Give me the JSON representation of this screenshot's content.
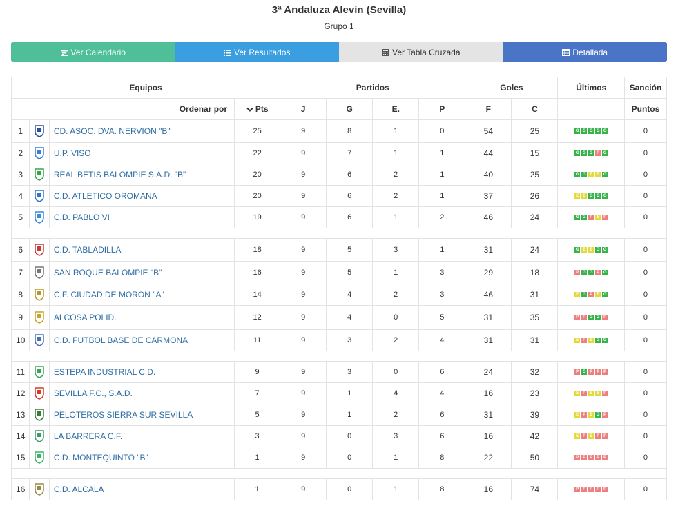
{
  "header": {
    "title": "3ª Andaluza Alevín (Sevilla)",
    "subtitle": "Grupo 1"
  },
  "buttons": [
    {
      "label": "Ver Calendario",
      "icon": "calendar-icon",
      "color": "#4fbf99"
    },
    {
      "label": "Ver Resultados",
      "icon": "list-icon",
      "color": "#3a9ee0"
    },
    {
      "label": "Ver Tabla Cruzada",
      "icon": "calculator-icon",
      "color": "#e4e4e4"
    },
    {
      "label": "Detallada",
      "icon": "table-icon",
      "color": "#4a74c6"
    }
  ],
  "table": {
    "groups": {
      "equipos": "Equipos",
      "partidos": "Partidos",
      "goles": "Goles",
      "ultimos": "Últimos",
      "sancion": "Sanción"
    },
    "sub": {
      "order": "Ordenar por",
      "pts": "Pts",
      "j": "J",
      "g": "G",
      "e": "E.",
      "p": "P",
      "f": "F",
      "c": "C",
      "puntos": "Puntos"
    },
    "rows": [
      {
        "pos": "1",
        "team": "CD. ASOC. DVA. NERVION \"B\"",
        "pts": "25",
        "j": "9",
        "g": "8",
        "e": "1",
        "p": "0",
        "f": "54",
        "c": "25",
        "form": [
          "G",
          "G",
          "G",
          "G",
          "G"
        ],
        "sancion": "0"
      },
      {
        "pos": "2",
        "team": "U.P. VISO",
        "pts": "22",
        "j": "9",
        "g": "7",
        "e": "1",
        "p": "1",
        "f": "44",
        "c": "15",
        "form": [
          "G",
          "G",
          "G",
          "P",
          "G"
        ],
        "sancion": "0"
      },
      {
        "pos": "3",
        "team": "REAL BETIS BALOMPIE S.A.D. \"B\"",
        "pts": "20",
        "j": "9",
        "g": "6",
        "e": "2",
        "p": "1",
        "f": "40",
        "c": "25",
        "form": [
          "G",
          "G",
          "E",
          "E",
          "G"
        ],
        "sancion": "0"
      },
      {
        "pos": "4",
        "team": "C.D. ATLETICO OROMANA",
        "pts": "20",
        "j": "9",
        "g": "6",
        "e": "2",
        "p": "1",
        "f": "37",
        "c": "26",
        "form": [
          "E",
          "E",
          "G",
          "G",
          "G"
        ],
        "sancion": "0"
      },
      {
        "pos": "5",
        "team": "C.D. PABLO VI",
        "pts": "19",
        "j": "9",
        "g": "6",
        "e": "1",
        "p": "2",
        "f": "46",
        "c": "24",
        "form": [
          "G",
          "G",
          "P",
          "E",
          "P"
        ],
        "sancion": "0"
      },
      {
        "pos": "6",
        "team": "C.D. TABLADILLA",
        "pts": "18",
        "j": "9",
        "g": "5",
        "e": "3",
        "p": "1",
        "f": "31",
        "c": "24",
        "form": [
          "G",
          "E",
          "E",
          "G",
          "G"
        ],
        "sancion": "0"
      },
      {
        "pos": "7",
        "team": "SAN ROQUE BALOMPIE \"B\"",
        "pts": "16",
        "j": "9",
        "g": "5",
        "e": "1",
        "p": "3",
        "f": "29",
        "c": "18",
        "form": [
          "P",
          "G",
          "G",
          "P",
          "G"
        ],
        "sancion": "0"
      },
      {
        "pos": "8",
        "team": "C.F. CIUDAD DE MORON \"A\"",
        "pts": "14",
        "j": "9",
        "g": "4",
        "e": "2",
        "p": "3",
        "f": "46",
        "c": "31",
        "form": [
          "E",
          "G",
          "P",
          "E",
          "G"
        ],
        "sancion": "0"
      },
      {
        "pos": "9",
        "team": "ALCOSA POLID.",
        "pts": "12",
        "j": "9",
        "g": "4",
        "e": "0",
        "p": "5",
        "f": "31",
        "c": "35",
        "form": [
          "P",
          "P",
          "G",
          "G",
          "P"
        ],
        "sancion": "0"
      },
      {
        "pos": "10",
        "team": "C.D. FUTBOL BASE DE CARMONA",
        "pts": "11",
        "j": "9",
        "g": "3",
        "e": "2",
        "p": "4",
        "f": "31",
        "c": "31",
        "form": [
          "E",
          "P",
          "E",
          "G",
          "G"
        ],
        "sancion": "0"
      },
      {
        "pos": "11",
        "team": "ESTEPA INDUSTRIAL C.D.",
        "pts": "9",
        "j": "9",
        "g": "3",
        "e": "0",
        "p": "6",
        "f": "24",
        "c": "32",
        "form": [
          "P",
          "G",
          "P",
          "P",
          "P"
        ],
        "sancion": "0"
      },
      {
        "pos": "12",
        "team": "SEVILLA F.C., S.A.D.",
        "pts": "7",
        "j": "9",
        "g": "1",
        "e": "4",
        "p": "4",
        "f": "16",
        "c": "23",
        "form": [
          "E",
          "P",
          "E",
          "E",
          "P"
        ],
        "sancion": "0"
      },
      {
        "pos": "13",
        "team": "PELOTEROS SIERRA SUR SEVILLA",
        "pts": "5",
        "j": "9",
        "g": "1",
        "e": "2",
        "p": "6",
        "f": "31",
        "c": "39",
        "form": [
          "E",
          "P",
          "E",
          "G",
          "P"
        ],
        "sancion": "0"
      },
      {
        "pos": "14",
        "team": "LA BARRERA C.F.",
        "pts": "3",
        "j": "9",
        "g": "0",
        "e": "3",
        "p": "6",
        "f": "16",
        "c": "42",
        "form": [
          "E",
          "P",
          "E",
          "P",
          "P"
        ],
        "sancion": "0"
      },
      {
        "pos": "15",
        "team": "C.D. MONTEQUINTO \"B\"",
        "pts": "1",
        "j": "9",
        "g": "0",
        "e": "1",
        "p": "8",
        "f": "22",
        "c": "50",
        "form": [
          "P",
          "P",
          "P",
          "P",
          "P"
        ],
        "sancion": "0"
      },
      {
        "pos": "16",
        "team": "C.D. ALCALA",
        "pts": "1",
        "j": "9",
        "g": "0",
        "e": "1",
        "p": "8",
        "f": "16",
        "c": "74",
        "form": [
          "P",
          "P",
          "P",
          "P",
          "P"
        ],
        "sancion": "0"
      }
    ]
  },
  "form_colors": {
    "G": "#37b34a",
    "E": "#e2d93a",
    "P": "#ec7f80"
  }
}
